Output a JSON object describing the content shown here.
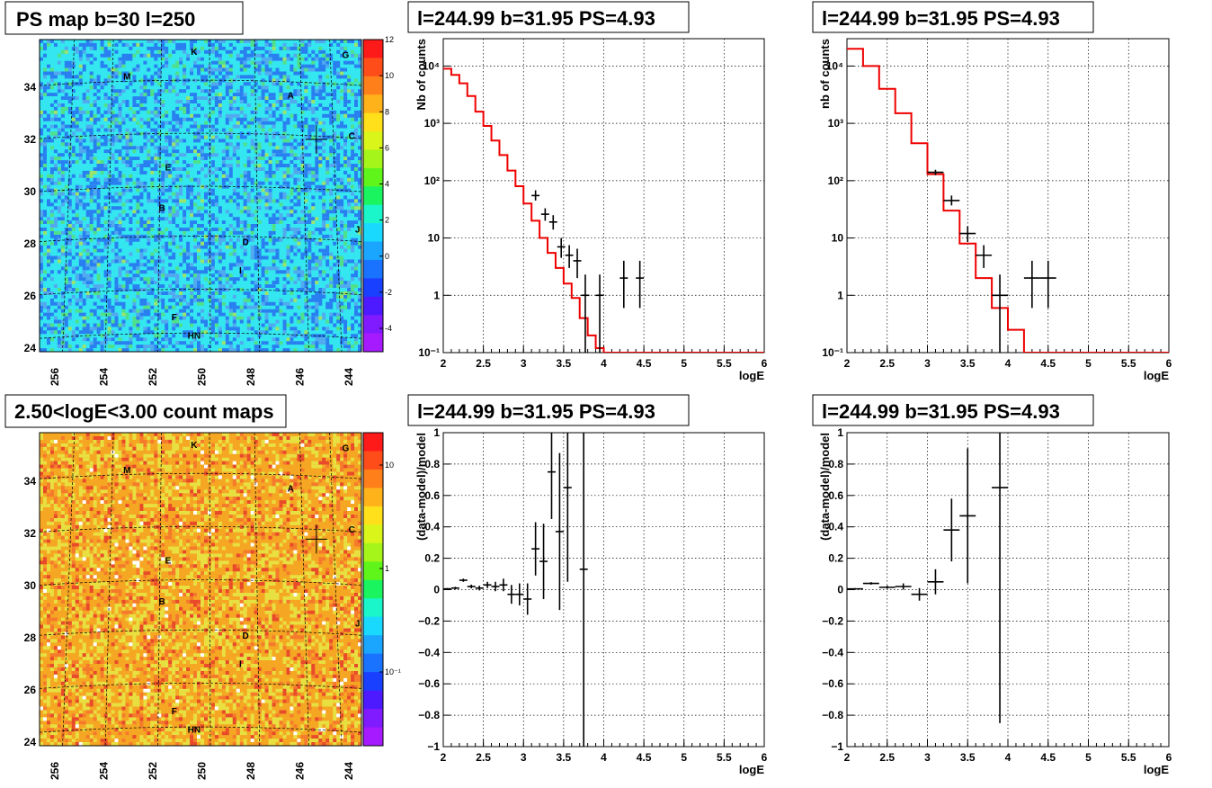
{
  "panels": {
    "ps_map": {
      "title": "PS map b=30 l=250",
      "x_ticks": [
        "256",
        "254",
        "252",
        "250",
        "248",
        "246",
        "244"
      ],
      "y_ticks": [
        "24",
        "26",
        "28",
        "30",
        "32",
        "34"
      ],
      "colorbar_ticks": [
        "12",
        "10",
        "8",
        "6",
        "4",
        "2",
        "0",
        "-2",
        "-4"
      ],
      "sources": [
        "K",
        "G",
        "M",
        "A",
        "C",
        "E",
        "B",
        "J",
        "D",
        "I",
        "F",
        "HN"
      ],
      "colors": {
        "background": "#33e6f0",
        "low": "#2a7ff0",
        "high": "#4fe08a"
      }
    },
    "count_map": {
      "title": "2.50<logE<3.00 count maps",
      "x_ticks": [
        "256",
        "254",
        "252",
        "250",
        "248",
        "246",
        "244"
      ],
      "y_ticks": [
        "24",
        "26",
        "28",
        "30",
        "32",
        "34"
      ],
      "colorbar_ticks": [
        "10",
        "1",
        "10⁻¹"
      ],
      "sources": [
        "K",
        "G",
        "M",
        "A",
        "C",
        "E",
        "B",
        "J",
        "D",
        "I",
        "F",
        "HN"
      ],
      "colors": {
        "background": "#f5a623",
        "mid": "#e8e040",
        "high": "#e84a2a"
      }
    },
    "spec_left": {
      "title": "l=244.99 b=31.95 PS=4.93",
      "ylabel": "Nb of counts",
      "xlabel": "logE",
      "x_ticks": [
        "2",
        "2.5",
        "3",
        "3.5",
        "4",
        "4.5",
        "5",
        "5.5",
        "6"
      ],
      "y_ticks": [
        "10⁻¹",
        "1",
        "10",
        "10²",
        "10³",
        "10⁴"
      ]
    },
    "spec_right": {
      "title": "l=244.99 b=31.95 PS=4.93",
      "ylabel": "nb of counts",
      "xlabel": "logE",
      "x_ticks": [
        "2",
        "2.5",
        "3",
        "3.5",
        "4",
        "4.5",
        "5",
        "5.5",
        "6"
      ],
      "y_ticks": [
        "10⁻¹",
        "1",
        "10",
        "10²",
        "10³",
        "10⁴"
      ]
    },
    "res_left": {
      "title": "l=244.99 b=31.95 PS=4.93",
      "ylabel": "(data-model)/model",
      "xlabel": "logE",
      "x_ticks": [
        "2",
        "2.5",
        "3",
        "3.5",
        "4",
        "4.5",
        "5",
        "5.5",
        "6"
      ],
      "y_ticks": [
        "−1",
        "−0.8",
        "−0.6",
        "−0.4",
        "−0.2",
        "0",
        "0.2",
        "0.4",
        "0.6",
        "0.8",
        "1"
      ]
    },
    "res_right": {
      "title": "l=244.99 b=31.95 PS=4.93",
      "ylabel": "(data-model)/model",
      "xlabel": "logE",
      "x_ticks": [
        "2",
        "2.5",
        "3",
        "3.5",
        "4",
        "4.5",
        "5",
        "5.5",
        "6"
      ],
      "y_ticks": [
        "−1",
        "−0.8",
        "−0.6",
        "−0.4",
        "−0.2",
        "0",
        "0.2",
        "0.4",
        "0.6",
        "0.8",
        "1"
      ]
    }
  },
  "chart_data": [
    {
      "id": "spec_left",
      "type": "line",
      "y_scale": "log",
      "xlim": [
        2,
        6
      ],
      "ylim": [
        0.1,
        30000
      ],
      "model_step": {
        "edges": [
          2,
          2.1,
          2.2,
          2.3,
          2.4,
          2.5,
          2.6,
          2.7,
          2.8,
          2.9,
          3.0,
          3.1,
          3.2,
          3.3,
          3.4,
          3.5,
          3.6,
          3.7,
          3.8,
          3.9,
          4.0,
          6.0
        ],
        "values": [
          9000,
          7000,
          5000,
          3000,
          1600,
          900,
          500,
          280,
          150,
          80,
          40,
          20,
          10,
          5.5,
          3,
          1.6,
          0.9,
          0.4,
          0.2,
          0.12,
          0.1
        ]
      },
      "data_points": [
        {
          "x": 3.15,
          "y": 55,
          "ylo": 45,
          "yhi": 68,
          "xhw": 0.05
        },
        {
          "x": 3.27,
          "y": 26,
          "ylo": 20,
          "yhi": 33,
          "xhw": 0.05
        },
        {
          "x": 3.37,
          "y": 19,
          "ylo": 14,
          "yhi": 25,
          "xhw": 0.05
        },
        {
          "x": 3.47,
          "y": 7,
          "ylo": 4.5,
          "yhi": 10,
          "xhw": 0.05
        },
        {
          "x": 3.57,
          "y": 5,
          "ylo": 3,
          "yhi": 7.5,
          "xhw": 0.05
        },
        {
          "x": 3.67,
          "y": 4,
          "ylo": 2,
          "yhi": 6.5,
          "xhw": 0.05
        },
        {
          "x": 3.77,
          "y": 1,
          "ylo": 0.1,
          "yhi": 2.3,
          "xhw": 0.05
        },
        {
          "x": 3.95,
          "y": 1,
          "ylo": 0.1,
          "yhi": 2.3,
          "xhw": 0.05
        },
        {
          "x": 4.25,
          "y": 2,
          "ylo": 0.6,
          "yhi": 4,
          "xhw": 0.05
        },
        {
          "x": 4.45,
          "y": 2,
          "ylo": 0.6,
          "yhi": 4,
          "xhw": 0.05
        }
      ]
    },
    {
      "id": "spec_right",
      "type": "line",
      "y_scale": "log",
      "xlim": [
        2,
        6
      ],
      "ylim": [
        0.1,
        30000
      ],
      "model_step": {
        "edges": [
          2,
          2.2,
          2.4,
          2.6,
          2.8,
          3.0,
          3.2,
          3.4,
          3.6,
          3.8,
          4.0,
          4.2,
          6.0
        ],
        "values": [
          20000,
          10000,
          4000,
          1500,
          450,
          130,
          30,
          8,
          2,
          0.6,
          0.25,
          0.1
        ]
      },
      "data_points": [
        {
          "x": 3.1,
          "y": 140,
          "ylo": 125,
          "yhi": 155,
          "xhw": 0.1
        },
        {
          "x": 3.3,
          "y": 45,
          "ylo": 37,
          "yhi": 55,
          "xhw": 0.1
        },
        {
          "x": 3.5,
          "y": 12,
          "ylo": 8.5,
          "yhi": 16,
          "xhw": 0.1
        },
        {
          "x": 3.7,
          "y": 5,
          "ylo": 3,
          "yhi": 7.5,
          "xhw": 0.1
        },
        {
          "x": 3.9,
          "y": 1,
          "ylo": 0.1,
          "yhi": 2.3,
          "xhw": 0.1
        },
        {
          "x": 4.3,
          "y": 2,
          "ylo": 0.6,
          "yhi": 4,
          "xhw": 0.1
        },
        {
          "x": 4.5,
          "y": 2,
          "ylo": 0.6,
          "yhi": 4,
          "xhw": 0.1
        }
      ]
    },
    {
      "id": "res_left",
      "type": "scatter",
      "xlim": [
        2,
        6
      ],
      "ylim": [
        -1,
        1
      ],
      "points": [
        {
          "x": 2.05,
          "y": 0.005,
          "err": 0.005,
          "xhw": 0.05
        },
        {
          "x": 2.15,
          "y": 0.01,
          "err": 0.008,
          "xhw": 0.05
        },
        {
          "x": 2.25,
          "y": 0.06,
          "err": 0.01,
          "xhw": 0.05
        },
        {
          "x": 2.35,
          "y": 0.02,
          "err": 0.012,
          "xhw": 0.05
        },
        {
          "x": 2.45,
          "y": 0.01,
          "err": 0.015,
          "xhw": 0.05
        },
        {
          "x": 2.55,
          "y": 0.03,
          "err": 0.02,
          "xhw": 0.05
        },
        {
          "x": 2.65,
          "y": 0.02,
          "err": 0.03,
          "xhw": 0.05
        },
        {
          "x": 2.75,
          "y": 0.03,
          "err": 0.04,
          "xhw": 0.05
        },
        {
          "x": 2.85,
          "y": -0.03,
          "err": 0.06,
          "xhw": 0.05
        },
        {
          "x": 2.95,
          "y": -0.03,
          "err": 0.07,
          "xhw": 0.05
        },
        {
          "x": 3.05,
          "y": -0.06,
          "err": 0.1,
          "xhw": 0.05
        },
        {
          "x": 3.15,
          "y": 0.26,
          "err": 0.17,
          "xhw": 0.05
        },
        {
          "x": 3.25,
          "y": 0.18,
          "err": 0.24,
          "xhw": 0.05
        },
        {
          "x": 3.35,
          "y": 0.75,
          "err": 0.3,
          "xhw": 0.05
        },
        {
          "x": 3.45,
          "y": 0.37,
          "err": 0.5,
          "xhw": 0.05
        },
        {
          "x": 3.55,
          "y": 0.65,
          "err": 0.6,
          "xhw": 0.05
        },
        {
          "x": 3.75,
          "y": 0.13,
          "err": 1.5,
          "xhw": 0.05
        }
      ]
    },
    {
      "id": "res_right",
      "type": "scatter",
      "xlim": [
        2,
        6
      ],
      "ylim": [
        -1,
        1
      ],
      "points": [
        {
          "x": 2.1,
          "y": 0.005,
          "err": 0.005,
          "xhw": 0.1
        },
        {
          "x": 2.3,
          "y": 0.04,
          "err": 0.008,
          "xhw": 0.1
        },
        {
          "x": 2.5,
          "y": 0.015,
          "err": 0.01,
          "xhw": 0.1
        },
        {
          "x": 2.7,
          "y": 0.02,
          "err": 0.02,
          "xhw": 0.1
        },
        {
          "x": 2.9,
          "y": -0.03,
          "err": 0.04,
          "xhw": 0.1
        },
        {
          "x": 3.1,
          "y": 0.05,
          "err": 0.08,
          "xhw": 0.1
        },
        {
          "x": 3.3,
          "y": 0.38,
          "err": 0.2,
          "xhw": 0.1
        },
        {
          "x": 3.5,
          "y": 0.47,
          "err": 0.43,
          "xhw": 0.1
        },
        {
          "x": 3.9,
          "y": 0.65,
          "err": 1.5,
          "xhw": 0.1
        }
      ]
    }
  ]
}
